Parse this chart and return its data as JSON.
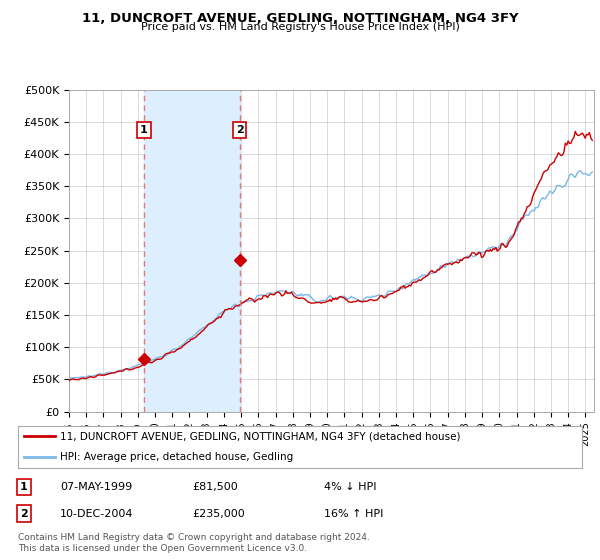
{
  "title": "11, DUNCROFT AVENUE, GEDLING, NOTTINGHAM, NG4 3FY",
  "subtitle": "Price paid vs. HM Land Registry's House Price Index (HPI)",
  "ylabel_ticks": [
    "£0",
    "£50K",
    "£100K",
    "£150K",
    "£200K",
    "£250K",
    "£300K",
    "£350K",
    "£400K",
    "£450K",
    "£500K"
  ],
  "ytick_values": [
    0,
    50000,
    100000,
    150000,
    200000,
    250000,
    300000,
    350000,
    400000,
    450000,
    500000
  ],
  "ylim": [
    0,
    500000
  ],
  "xlim_start": 1995.0,
  "xlim_end": 2025.5,
  "purchase1_date": 1999.35,
  "purchase1_price": 81500,
  "purchase1_label": "1",
  "purchase2_date": 2004.92,
  "purchase2_price": 235000,
  "purchase2_label": "2",
  "hpi_color": "#7ab8e8",
  "price_color": "#cc0000",
  "vline_color": "#e87878",
  "shade_color": "#ddeeff",
  "grid_color": "#cccccc",
  "bg_color": "#ffffff",
  "legend_label1": "11, DUNCROFT AVENUE, GEDLING, NOTTINGHAM, NG4 3FY (detached house)",
  "legend_label2": "HPI: Average price, detached house, Gedling",
  "table_row1": [
    "1",
    "07-MAY-1999",
    "£81,500",
    "4% ↓ HPI"
  ],
  "table_row2": [
    "2",
    "10-DEC-2004",
    "£235,000",
    "16% ↑ HPI"
  ],
  "footnote": "Contains HM Land Registry data © Crown copyright and database right 2024.\nThis data is licensed under the Open Government Licence v3.0.",
  "hpi_annual": [
    1995.5,
    1996.5,
    1997.5,
    1998.5,
    1999.5,
    2000.5,
    2001.5,
    2002.5,
    2003.5,
    2004.5,
    2005.5,
    2006.5,
    2007.5,
    2008.5,
    2009.5,
    2010.5,
    2011.5,
    2012.5,
    2013.5,
    2014.5,
    2015.5,
    2016.5,
    2017.5,
    2018.5,
    2019.5,
    2020.5,
    2021.5,
    2022.5,
    2023.5,
    2024.5
  ],
  "hpi_annual_vals": [
    52000,
    56000,
    61000,
    68000,
    76000,
    87000,
    102000,
    122000,
    145000,
    165000,
    173000,
    182000,
    188000,
    180000,
    172000,
    178000,
    176000,
    176000,
    183000,
    197000,
    210000,
    222000,
    236000,
    245000,
    251000,
    263000,
    300000,
    330000,
    348000,
    370000
  ],
  "price_annual": [
    1995.5,
    1996.5,
    1997.5,
    1998.5,
    1999.5,
    2000.5,
    2001.5,
    2002.5,
    2003.5,
    2004.5,
    2005.5,
    2006.5,
    2007.5,
    2008.5,
    2009.5,
    2010.5,
    2011.5,
    2012.5,
    2013.5,
    2014.5,
    2015.5,
    2016.5,
    2017.5,
    2018.5,
    2019.5,
    2020.5,
    2021.5,
    2022.5,
    2023.5,
    2024.5
  ],
  "price_annual_vals": [
    50000,
    54000,
    59000,
    66000,
    74000,
    85000,
    100000,
    120000,
    143000,
    163000,
    171000,
    180000,
    186000,
    175000,
    168000,
    174000,
    172000,
    172000,
    180000,
    194000,
    207000,
    220000,
    235000,
    243000,
    249000,
    260000,
    310000,
    365000,
    400000,
    430000
  ]
}
